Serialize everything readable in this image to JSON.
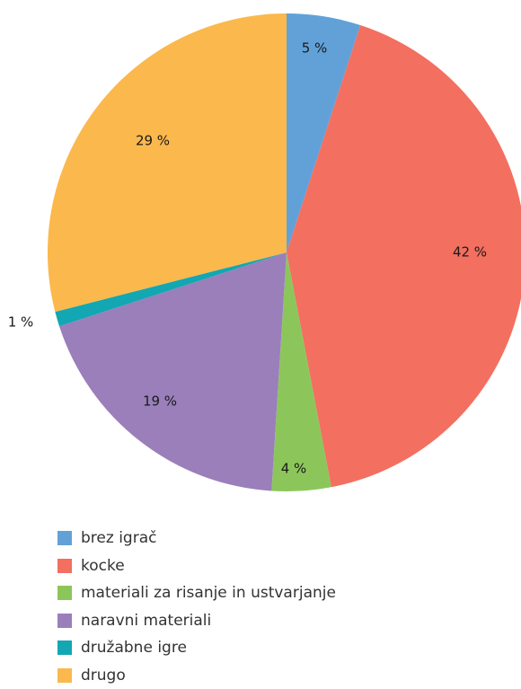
{
  "chart_data": {
    "type": "pie",
    "title": "",
    "categories": [
      "brez igrač",
      "kocke",
      "materiali za risanje in ustvarjanje",
      "naravni materiali",
      "družabne igre",
      "drugo"
    ],
    "values": [
      5,
      42,
      4,
      19,
      1,
      29
    ],
    "data_labels": [
      "5 %",
      "42 %",
      "4 %",
      "19 %",
      "1 %",
      "29 %"
    ],
    "colors": [
      "#62a1d8",
      "#f36f60",
      "#8cc65b",
      "#9a7fba",
      "#12a7b2",
      "#fbb84c"
    ],
    "legend_position": "bottom-left"
  }
}
